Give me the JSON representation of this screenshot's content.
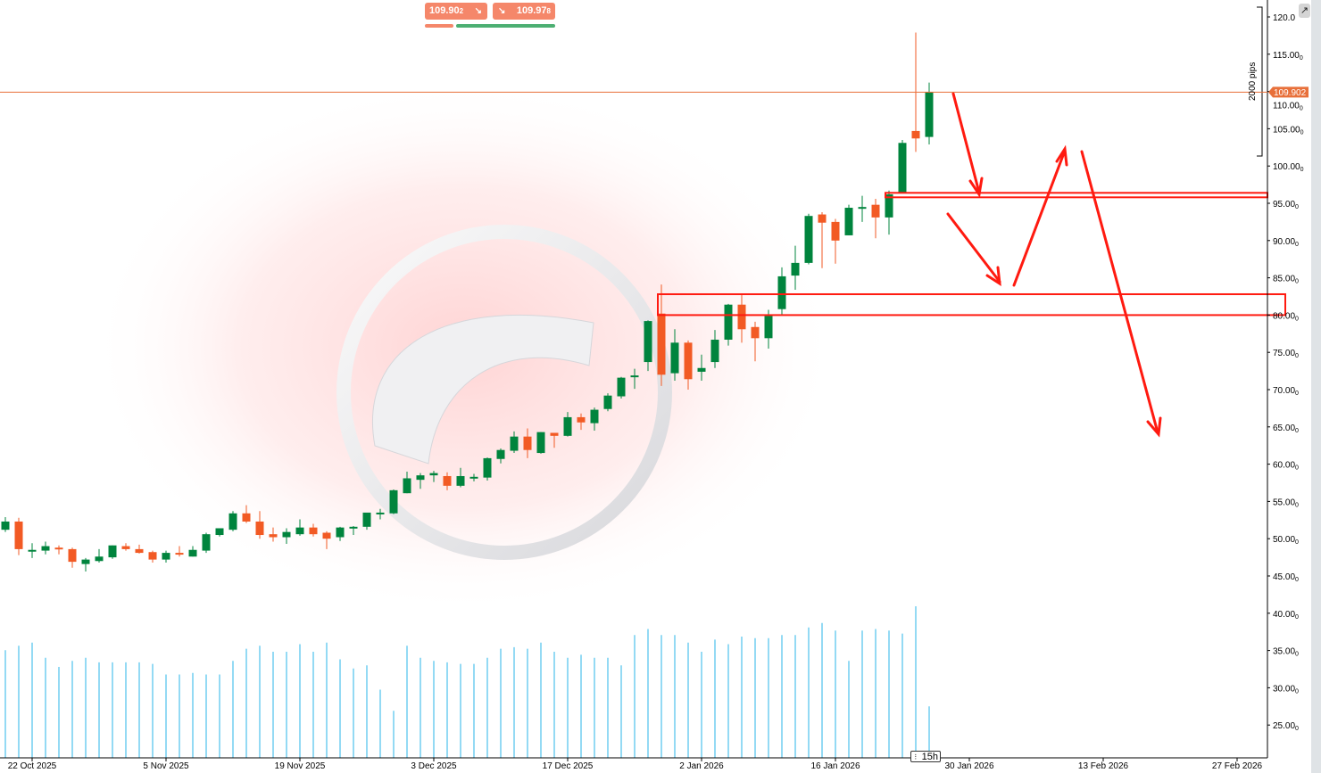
{
  "trade_panel": {
    "sell_price": "109.90",
    "sell_price_sub": "2",
    "buy_price": "109.97",
    "buy_price_sub": "8",
    "sell_icon": "arrow-down-right-icon",
    "buy_icon": "arrow-down-right-icon",
    "sell_color": "#f5876a",
    "buy_color": "#4caf72",
    "sell_share_pct": 24,
    "buy_share_pct": 76
  },
  "toolbar": {
    "edit_icon": "external-edit-icon"
  },
  "ruler": {
    "label": "2000 pips"
  },
  "timeframe_badge": "15h",
  "chart_data": {
    "type": "candlestick",
    "colors": {
      "up": "#00843d",
      "down": "#f25a24",
      "price_line": "#e8703a",
      "annotation": "#ff1a10",
      "volume": "#29b6e8"
    },
    "current_price": 109.902,
    "current_price_label": "109.902",
    "ylim": [
      22,
      122.3
    ],
    "y_ticks": [
      "120.0",
      "115.00",
      "110.00",
      "105.00",
      "100.00",
      "95.00",
      "90.00",
      "85.00",
      "80.00",
      "75.00",
      "70.00",
      "65.00",
      "60.00",
      "55.00",
      "50.00",
      "45.00",
      "40.00",
      "35.00",
      "30.00",
      "25.00"
    ],
    "y_tick_values": [
      120,
      115,
      110,
      105,
      100,
      95,
      90,
      85,
      80,
      75,
      70,
      65,
      60,
      55,
      50,
      45,
      40,
      35,
      30,
      25
    ],
    "x_ticks": [
      {
        "label": "22 Oct 2025",
        "index": 2
      },
      {
        "label": "5 Nov 2025",
        "index": 12
      },
      {
        "label": "19 Nov 2025",
        "index": 22
      },
      {
        "label": "3 Dec 2025",
        "index": 32
      },
      {
        "label": "17 Dec 2025",
        "index": 42
      },
      {
        "label": "2 Jan 2026",
        "index": 52
      },
      {
        "label": "16 Jan 2026",
        "index": 62
      },
      {
        "label": "30 Jan 2026",
        "index": 72
      },
      {
        "label": "13 Feb 2026",
        "index": 82
      },
      {
        "label": "27 Feb 2026",
        "index": 92
      }
    ],
    "ohlc": [
      [
        51.2,
        52.9,
        50.9,
        52.3
      ],
      [
        52.3,
        52.8,
        47.8,
        48.6
      ],
      [
        48.4,
        49.4,
        47.4,
        48.5
      ],
      [
        48.4,
        49.6,
        47.9,
        49.0
      ],
      [
        48.8,
        49.1,
        47.9,
        48.6
      ],
      [
        48.6,
        48.8,
        46.1,
        46.9
      ],
      [
        46.6,
        47.4,
        45.6,
        47.2
      ],
      [
        47.0,
        48.6,
        46.8,
        47.6
      ],
      [
        47.5,
        49.1,
        47.3,
        49.1
      ],
      [
        49.0,
        49.4,
        48.4,
        48.6
      ],
      [
        48.6,
        49.2,
        48.0,
        48.1
      ],
      [
        48.2,
        48.4,
        46.8,
        47.2
      ],
      [
        47.2,
        48.4,
        46.8,
        48.1
      ],
      [
        48.1,
        49.0,
        47.6,
        48.0
      ],
      [
        47.6,
        49.0,
        47.6,
        48.5
      ],
      [
        48.4,
        50.8,
        48.1,
        50.6
      ],
      [
        50.5,
        51.4,
        50.3,
        51.4
      ],
      [
        51.2,
        53.7,
        51.0,
        53.4
      ],
      [
        53.4,
        54.5,
        52.1,
        52.3
      ],
      [
        52.3,
        53.7,
        50.0,
        50.5
      ],
      [
        50.6,
        51.5,
        49.6,
        50.2
      ],
      [
        50.2,
        51.4,
        49.3,
        50.9
      ],
      [
        50.6,
        52.6,
        50.4,
        51.5
      ],
      [
        51.5,
        52.0,
        50.3,
        50.6
      ],
      [
        50.8,
        51.0,
        48.6,
        50.0
      ],
      [
        50.2,
        51.6,
        49.7,
        51.5
      ],
      [
        51.4,
        51.7,
        50.5,
        51.6
      ],
      [
        51.6,
        53.5,
        51.2,
        53.5
      ],
      [
        53.3,
        54.0,
        52.6,
        53.5
      ],
      [
        53.4,
        56.6,
        53.3,
        56.5
      ],
      [
        56.1,
        59.0,
        56.1,
        58.1
      ],
      [
        57.9,
        58.8,
        56.7,
        58.5
      ],
      [
        58.5,
        59.1,
        57.6,
        58.8
      ],
      [
        58.4,
        58.9,
        56.5,
        57.1
      ],
      [
        57.1,
        59.5,
        56.9,
        58.4
      ],
      [
        58.1,
        58.7,
        57.7,
        58.3
      ],
      [
        58.2,
        60.9,
        57.8,
        60.8
      ],
      [
        60.7,
        62.1,
        60.1,
        61.9
      ],
      [
        61.8,
        64.4,
        61.5,
        63.7
      ],
      [
        63.7,
        64.8,
        60.8,
        61.9
      ],
      [
        61.5,
        64.3,
        61.4,
        64.3
      ],
      [
        64.2,
        64.2,
        62.2,
        63.8
      ],
      [
        63.8,
        67.0,
        63.7,
        66.3
      ],
      [
        66.3,
        66.8,
        64.6,
        65.6
      ],
      [
        65.5,
        67.6,
        64.5,
        67.3
      ],
      [
        67.4,
        69.5,
        67.1,
        69.2
      ],
      [
        69.1,
        71.7,
        68.8,
        71.6
      ],
      [
        71.7,
        72.8,
        70.1,
        71.9
      ],
      [
        73.7,
        79.3,
        72.5,
        79.2
      ],
      [
        80.2,
        84.1,
        70.5,
        72.0
      ],
      [
        72.2,
        78.1,
        71.2,
        76.3
      ],
      [
        76.3,
        76.6,
        70.0,
        71.4
      ],
      [
        72.4,
        74.7,
        71.2,
        72.9
      ],
      [
        73.7,
        78.0,
        72.9,
        76.7
      ],
      [
        76.7,
        81.5,
        75.9,
        81.4
      ],
      [
        81.4,
        82.8,
        76.3,
        78.1
      ],
      [
        78.4,
        79.1,
        73.8,
        76.9
      ],
      [
        76.9,
        80.7,
        75.5,
        79.9
      ],
      [
        80.8,
        86.4,
        80.1,
        85.2
      ],
      [
        85.3,
        89.3,
        83.4,
        87.0
      ],
      [
        87.0,
        93.6,
        86.8,
        93.3
      ],
      [
        93.5,
        93.8,
        86.3,
        92.4
      ],
      [
        92.5,
        92.9,
        86.9,
        90.0
      ],
      [
        90.7,
        94.8,
        90.7,
        94.4
      ],
      [
        94.3,
        96.0,
        92.5,
        94.5
      ],
      [
        94.8,
        95.6,
        90.3,
        93.1
      ],
      [
        93.1,
        96.7,
        90.8,
        96.2
      ],
      [
        96.4,
        103.5,
        96.4,
        103.1
      ],
      [
        104.7,
        117.9,
        101.9,
        103.7
      ],
      [
        103.9,
        111.2,
        102.9,
        109.9
      ]
    ],
    "volume_relative": [
      0.71,
      0.74,
      0.76,
      0.66,
      0.6,
      0.64,
      0.66,
      0.63,
      0.63,
      0.63,
      0.63,
      0.62,
      0.55,
      0.55,
      0.56,
      0.55,
      0.55,
      0.64,
      0.72,
      0.74,
      0.7,
      0.7,
      0.75,
      0.7,
      0.76,
      0.65,
      0.59,
      0.61,
      0.45,
      0.31,
      0.74,
      0.66,
      0.64,
      0.63,
      0.62,
      0.62,
      0.66,
      0.72,
      0.73,
      0.72,
      0.76,
      0.7,
      0.66,
      0.68,
      0.66,
      0.66,
      0.61,
      0.81,
      0.85,
      0.81,
      0.81,
      0.76,
      0.7,
      0.78,
      0.75,
      0.8,
      0.79,
      0.79,
      0.81,
      0.81,
      0.86,
      0.89,
      0.84,
      0.64,
      0.84,
      0.85,
      0.84,
      0.82,
      1.0,
      0.34
    ],
    "zones": [
      {
        "from_index": 66,
        "high": 96.4,
        "low": 95.8
      },
      {
        "from_index": 49,
        "high": 82.8,
        "low": 80.0
      }
    ]
  }
}
